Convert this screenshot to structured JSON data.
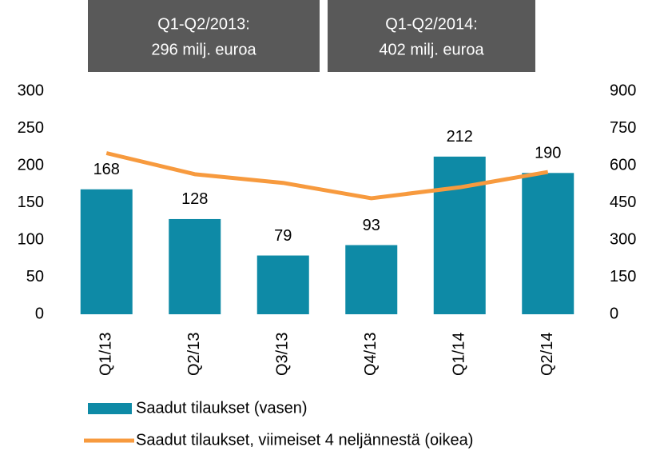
{
  "chart_data": {
    "type": "bar_line",
    "annotations": [
      {
        "lines": [
          "Q1-Q2/2013:",
          "296 milj. euroa"
        ]
      },
      {
        "lines": [
          "Q1-Q2/2014:",
          "402 milj. euroa"
        ]
      }
    ],
    "categories": [
      "Q1/13",
      "Q2/13",
      "Q3/13",
      "Q4/13",
      "Q1/14",
      "Q2/14"
    ],
    "series": [
      {
        "name": "Saadut tilaukset (vasen)",
        "type": "bar",
        "color": "#0e8aa6",
        "values": [
          168,
          128,
          79,
          93,
          212,
          190
        ]
      },
      {
        "name": "Saadut tilaukset, viimeiset 4 neljännestä (oikea)",
        "type": "line",
        "axis": "y2",
        "color": "#f79a3e",
        "values": [
          650,
          565,
          530,
          468,
          512,
          574
        ]
      }
    ],
    "ylim": [
      0,
      300
    ],
    "yticks": [
      0,
      50,
      100,
      150,
      200,
      250,
      300
    ],
    "y2lim": [
      0,
      900
    ],
    "y2ticks": [
      0,
      150,
      300,
      450,
      600,
      750,
      900
    ],
    "grid": false,
    "legend": "bottom"
  }
}
